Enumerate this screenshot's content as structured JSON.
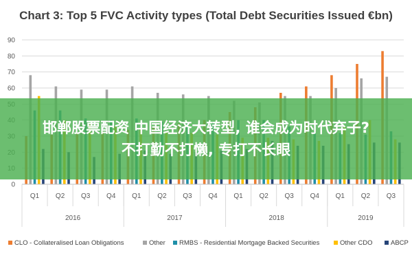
{
  "chart_data": {
    "type": "bar",
    "title": "Chart 3: Top 5 FVC Activity types (Total Debt Securities Issued €bn)",
    "xlabel": "",
    "ylabel": "",
    "ylim": [
      0,
      90
    ],
    "yticks": [
      0,
      10,
      20,
      30,
      40,
      50,
      60,
      70,
      80,
      90
    ],
    "grid": true,
    "legend_position": "bottom",
    "years": [
      {
        "label": "2016",
        "quarters": [
          "Q1",
          "Q2",
          "Q3",
          "Q4"
        ]
      },
      {
        "label": "2017",
        "quarters": [
          "Q1",
          "Q2",
          "Q3",
          "Q4"
        ]
      },
      {
        "label": "2018",
        "quarters": [
          "Q1",
          "Q2",
          "Q3",
          "Q4"
        ]
      },
      {
        "label": "2019",
        "quarters": [
          "Q1",
          "Q2",
          "Q3"
        ]
      }
    ],
    "categories": [
      "Q1",
      "Q2",
      "Q3",
      "Q4",
      "Q1",
      "Q2",
      "Q3",
      "Q4",
      "Q1",
      "Q2",
      "Q3",
      "Q4",
      "Q1",
      "Q2",
      "Q3"
    ],
    "series": [
      {
        "name": "CLO - Collateralised Loan Obligations",
        "color": "#ed7d31",
        "values": [
          30,
          31,
          32,
          33,
          34,
          36,
          38,
          40,
          45,
          48,
          57,
          61,
          68,
          75,
          83
        ]
      },
      {
        "name": "Other",
        "color": "#a5a5a5",
        "values": [
          68,
          61,
          59,
          59,
          61,
          57,
          56,
          55,
          52,
          51,
          55,
          55,
          60,
          66,
          67
        ]
      },
      {
        "name": "RMBS - Residential Mortgage Backed Securities",
        "color": "#1f8fa8",
        "values": [
          46,
          46,
          41,
          40,
          41,
          39,
          38,
          38,
          40,
          40,
          36,
          33,
          32,
          31,
          33
        ]
      },
      {
        "name": "Other CDO",
        "color": "#ffc000",
        "values": [
          55,
          40,
          38,
          36,
          35,
          33,
          32,
          31,
          29,
          29,
          28,
          27,
          36,
          40,
          28
        ]
      },
      {
        "name": "ABCP",
        "color": "#264478",
        "values": [
          22,
          20,
          17,
          19,
          21,
          19,
          20,
          21,
          22,
          27,
          24,
          24,
          25,
          26,
          26
        ]
      }
    ]
  },
  "overlay": {
    "line1": "邯郸股票配资 中国经济大转型, 谁会成为时代弃子?",
    "line2": "不打勤不打懒, 专打不长眼"
  }
}
